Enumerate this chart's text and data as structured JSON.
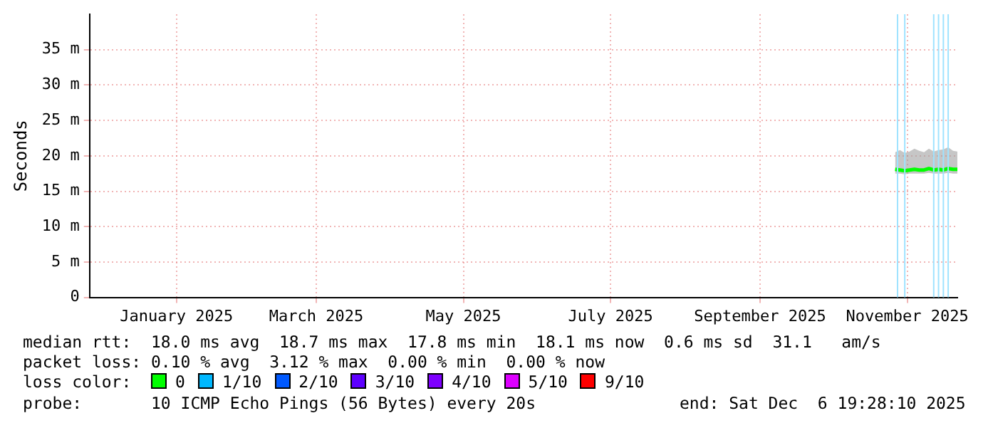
{
  "chart_data": {
    "type": "line",
    "ylabel": "Seconds",
    "legend_title": "loss color:",
    "legend": "bottom",
    "grid": true,
    "x": [
      "2025-11-11",
      "2025-11-13",
      "2025-11-15",
      "2025-11-17",
      "2025-11-19",
      "2025-11-21",
      "2025-11-23",
      "2025-11-25",
      "2025-11-27",
      "2025-11-29",
      "2025-12-01",
      "2025-12-03",
      "2025-12-05",
      "2025-12-06T19:28"
    ],
    "series": [
      {
        "name": "0",
        "color": "#00ff00",
        "values": [
          18.1,
          18.0,
          17.9,
          18.0,
          18.1,
          18.0,
          18.0,
          18.2,
          18.0,
          18.1,
          18.0,
          18.2,
          18.1,
          18.1
        ],
        "lower": [
          17.5,
          17.5,
          17.4,
          17.5,
          17.5,
          17.5,
          17.5,
          17.6,
          17.5,
          17.5,
          17.5,
          17.6,
          17.5,
          17.5
        ],
        "upper": [
          20.5,
          20.8,
          20.4,
          20.6,
          21.0,
          20.7,
          20.5,
          21.0,
          20.6,
          20.8,
          20.9,
          21.2,
          20.7,
          20.6
        ]
      },
      {
        "name": "1/10",
        "color": "#00b8ff",
        "values": [
          null,
          null,
          null,
          null,
          null,
          null,
          null,
          null,
          null,
          null,
          null,
          null,
          null,
          null
        ]
      },
      {
        "name": "2/10",
        "color": "#0059ff",
        "values": [
          null,
          null,
          null,
          null,
          null,
          null,
          null,
          null,
          null,
          null,
          null,
          null,
          null,
          null
        ]
      },
      {
        "name": "3/10",
        "color": "#5e00ff",
        "values": [
          null,
          null,
          null,
          null,
          null,
          null,
          null,
          null,
          null,
          null,
          null,
          null,
          null,
          null
        ]
      },
      {
        "name": "4/10",
        "color": "#7e00ff",
        "values": [
          null,
          null,
          null,
          null,
          null,
          null,
          null,
          null,
          null,
          null,
          null,
          null,
          null,
          null
        ]
      },
      {
        "name": "5/10",
        "color": "#dd00ff",
        "values": [
          null,
          null,
          null,
          null,
          null,
          null,
          null,
          null,
          null,
          null,
          null,
          null,
          null,
          null
        ]
      },
      {
        "name": "9/10",
        "color": "#ff0000",
        "values": [
          null,
          null,
          null,
          null,
          null,
          null,
          null,
          null,
          null,
          null,
          null,
          null,
          null,
          null
        ]
      }
    ],
    "ref_lines": [
      {
        "axis": "x",
        "value": "2025-11-12",
        "color": "#9fe3ff"
      },
      {
        "axis": "x",
        "value": "2025-11-15",
        "color": "#9fe3ff"
      },
      {
        "axis": "x",
        "value": "2025-11-27",
        "color": "#9fe3ff"
      },
      {
        "axis": "x",
        "value": "2025-11-29",
        "color": "#9fe3ff"
      },
      {
        "axis": "x",
        "value": "2025-12-01",
        "color": "#9fe3ff"
      },
      {
        "axis": "x",
        "value": "2025-12-03",
        "color": "#9fe3ff"
      }
    ],
    "xlim": [
      "2024-12-12",
      "2025-12-06T19:28"
    ],
    "xticks": [
      {
        "value": "2025-01-17",
        "label": "January 2025"
      },
      {
        "value": "2025-03-16",
        "label": "March 2025"
      },
      {
        "value": "2025-05-16",
        "label": "May 2025"
      },
      {
        "value": "2025-07-16",
        "label": "July 2025"
      },
      {
        "value": "2025-09-16",
        "label": "September 2025"
      },
      {
        "value": "2025-11-16",
        "label": "November 2025"
      }
    ],
    "ylim": [
      0,
      40
    ],
    "yticks": [
      0,
      {
        "value": 5,
        "label": "5 m"
      },
      {
        "value": 10,
        "label": "10 m"
      },
      {
        "value": 15,
        "label": "15 m"
      },
      {
        "value": 20,
        "label": "20 m"
      },
      {
        "value": 25,
        "label": "25 m"
      },
      {
        "value": 30,
        "label": "30 m"
      },
      {
        "value": 35,
        "label": "35 m"
      }
    ],
    "annotations": [
      "median rtt:  18.0 ms avg  18.7 ms max  17.8 ms min  18.1 ms now  0.6 ms sd  31.1   am/s",
      "packet loss: 0.10 % avg  3.12 % max  0.00 % min  0.00 % now",
      "probe:       10 ICMP Echo Pings (56 Bytes) every 20s",
      "end: Sat Dec  6 19:28:10 2025"
    ]
  }
}
